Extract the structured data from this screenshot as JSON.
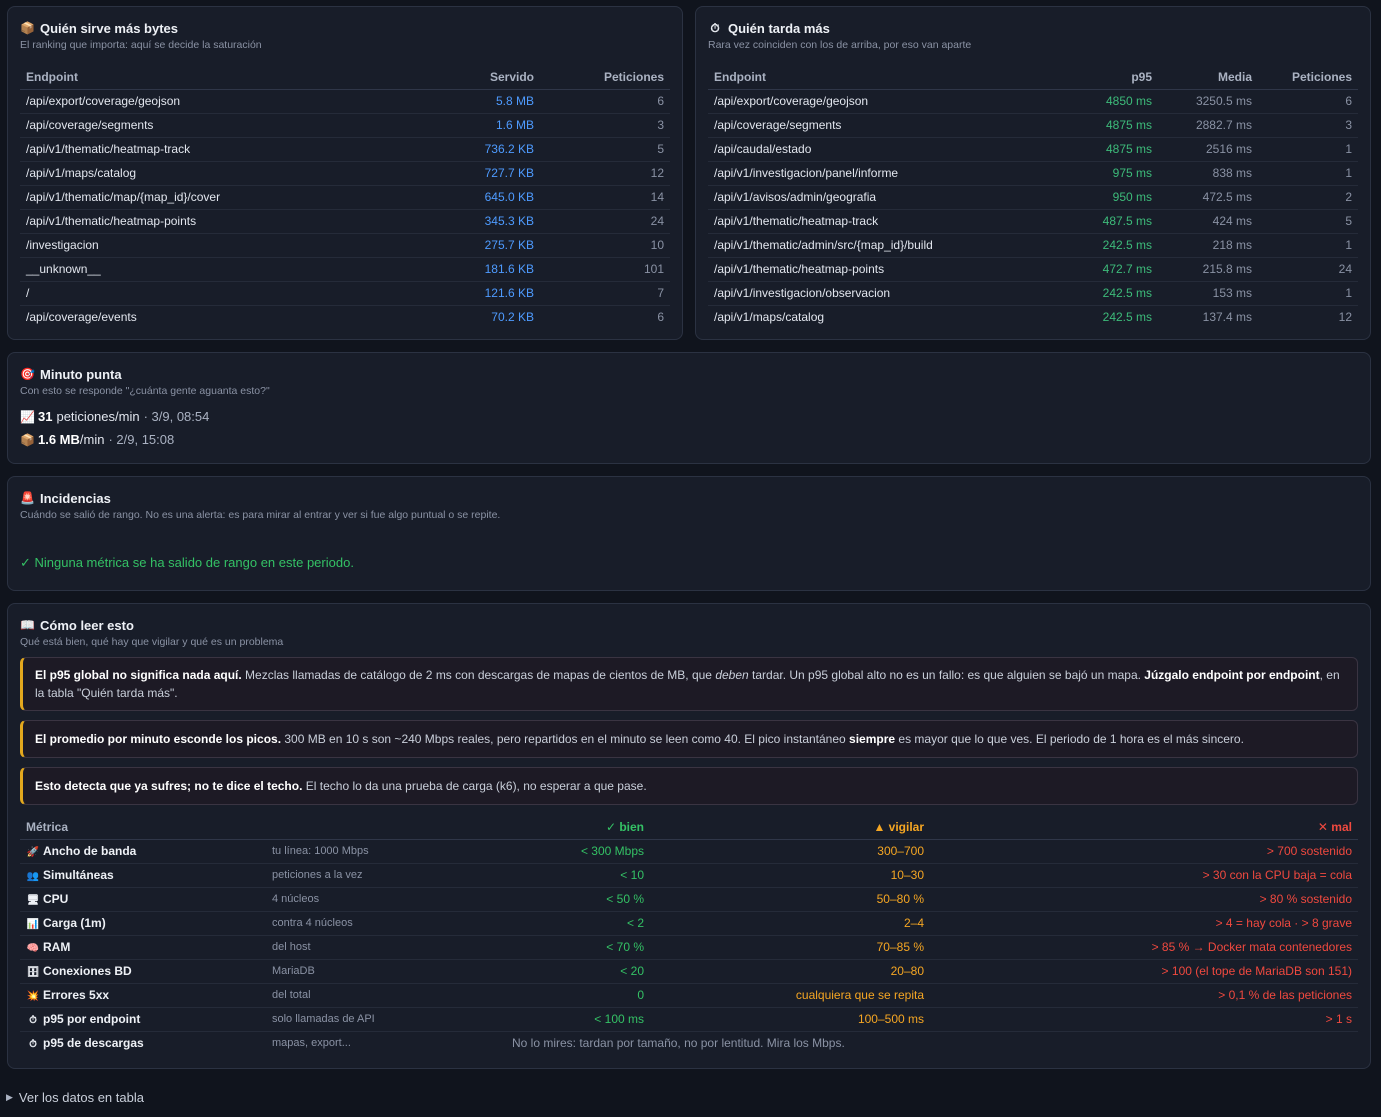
{
  "bytes_card": {
    "icon": "📦",
    "title": "Quién sirve más bytes",
    "subtitle": "El ranking que importa: aquí se decide la saturación",
    "headers": {
      "endpoint": "Endpoint",
      "servido": "Servido",
      "peticiones": "Peticiones"
    },
    "rows": [
      {
        "endpoint": "/api/export/coverage/geojson",
        "servido": "5.8 MB",
        "peticiones": "6"
      },
      {
        "endpoint": "/api/coverage/segments",
        "servido": "1.6 MB",
        "peticiones": "3"
      },
      {
        "endpoint": "/api/v1/thematic/heatmap-track",
        "servido": "736.2 KB",
        "peticiones": "5"
      },
      {
        "endpoint": "/api/v1/maps/catalog",
        "servido": "727.7 KB",
        "peticiones": "12"
      },
      {
        "endpoint": "/api/v1/thematic/map/{map_id}/cover",
        "servido": "645.0 KB",
        "peticiones": "14"
      },
      {
        "endpoint": "/api/v1/thematic/heatmap-points",
        "servido": "345.3 KB",
        "peticiones": "24"
      },
      {
        "endpoint": "/investigacion",
        "servido": "275.7 KB",
        "peticiones": "10"
      },
      {
        "endpoint": "__unknown__",
        "servido": "181.6 KB",
        "peticiones": "101"
      },
      {
        "endpoint": "/",
        "servido": "121.6 KB",
        "peticiones": "7"
      },
      {
        "endpoint": "/api/coverage/events",
        "servido": "70.2 KB",
        "peticiones": "6"
      }
    ]
  },
  "slow_card": {
    "icon": "⏱",
    "title": "Quién tarda más",
    "subtitle": "Rara vez coinciden con los de arriba, por eso van aparte",
    "headers": {
      "endpoint": "Endpoint",
      "p95": "p95",
      "media": "Media",
      "peticiones": "Peticiones"
    },
    "rows": [
      {
        "endpoint": "/api/export/coverage/geojson",
        "p95": "4850 ms",
        "media": "3250.5 ms",
        "peticiones": "6"
      },
      {
        "endpoint": "/api/coverage/segments",
        "p95": "4875 ms",
        "media": "2882.7 ms",
        "peticiones": "3"
      },
      {
        "endpoint": "/api/caudal/estado",
        "p95": "4875 ms",
        "media": "2516 ms",
        "peticiones": "1"
      },
      {
        "endpoint": "/api/v1/investigacion/panel/informe",
        "p95": "975 ms",
        "media": "838 ms",
        "peticiones": "1"
      },
      {
        "endpoint": "/api/v1/avisos/admin/geografia",
        "p95": "950 ms",
        "media": "472.5 ms",
        "peticiones": "2"
      },
      {
        "endpoint": "/api/v1/thematic/heatmap-track",
        "p95": "487.5 ms",
        "media": "424 ms",
        "peticiones": "5"
      },
      {
        "endpoint": "/api/v1/thematic/admin/src/{map_id}/build",
        "p95": "242.5 ms",
        "media": "218 ms",
        "peticiones": "1"
      },
      {
        "endpoint": "/api/v1/thematic/heatmap-points",
        "p95": "472.7 ms",
        "media": "215.8 ms",
        "peticiones": "24"
      },
      {
        "endpoint": "/api/v1/investigacion/observacion",
        "p95": "242.5 ms",
        "media": "153 ms",
        "peticiones": "1"
      },
      {
        "endpoint": "/api/v1/maps/catalog",
        "p95": "242.5 ms",
        "media": "137.4 ms",
        "peticiones": "12"
      }
    ]
  },
  "peak_card": {
    "icon": "🎯",
    "title": "Minuto punta",
    "subtitle": "Con esto se responde \"¿cuánta gente aguanta esto?\"",
    "req": {
      "icon": "📈",
      "value": "31",
      "unit": "peticiones/min",
      "when": "· 3/9, 08:54"
    },
    "bytes": {
      "icon": "📦",
      "value": "1.6 MB",
      "unit": "/min",
      "when": "· 2/9, 15:08"
    }
  },
  "incidents_card": {
    "icon": "🚨",
    "title": "Incidencias",
    "subtitle": "Cuándo se salió de rango. No es una alerta: es para mirar al entrar y ver si fue algo puntual o se repite.",
    "message": "✓ Ninguna métrica se ha salido de rango en este periodo."
  },
  "guide_card": {
    "icon": "📖",
    "title": "Cómo leer esto",
    "subtitle": "Qué está bien, qué hay que vigilar y qué es un problema",
    "callouts": [
      {
        "b1": "El p95 global no significa nada aquí.",
        "t1": " Mezclas llamadas de catálogo de 2 ms con descargas de mapas de cientos de MB, que ",
        "em": "deben",
        "t2": " tardar. Un p95 global alto no es un fallo: es que alguien se bajó un mapa. ",
        "b2": "Júzgalo endpoint por endpoint",
        "t3": ", en la tabla \"Quién tarda más\"."
      },
      {
        "b1": "El promedio por minuto esconde los picos.",
        "t1": " 300 MB en 10 s son ~240 Mbps reales, pero repartidos en el minuto se leen como 40. El pico instantáneo ",
        "b2": "siempre",
        "t2": " es mayor que lo que ves. El periodo de 1 hora es el más sincero."
      },
      {
        "b1": "Esto detecta que ya sufres; no te dice el techo.",
        "t1": " El techo lo da una prueba de carga (k6), no esperar a que pase."
      }
    ],
    "headers": {
      "metrica": "Métrica",
      "bien": "✓ bien",
      "vigilar": "▲ vigilar",
      "mal": "✕ mal"
    },
    "metrics": [
      {
        "icon": "🚀",
        "name": "Ancho de banda",
        "ctx": "tu línea: 1000 Mbps",
        "bien": "< 300 Mbps",
        "vigilar": "300–700",
        "mal": "> 700 sostenido"
      },
      {
        "icon": "👥",
        "name": "Simultáneas",
        "ctx": "peticiones a la vez",
        "bien": "< 10",
        "vigilar": "10–30",
        "mal": "> 30 con la CPU baja = cola"
      },
      {
        "icon": "🖥",
        "name": "CPU",
        "ctx": "4 núcleos",
        "bien": "< 50 %",
        "vigilar": "50–80 %",
        "mal": "> 80 % sostenido"
      },
      {
        "icon": "📊",
        "name": "Carga (1m)",
        "ctx": "contra 4 núcleos",
        "bien": "< 2",
        "vigilar": "2–4",
        "mal": "> 4 = hay cola · > 8 grave"
      },
      {
        "icon": "🧠",
        "name": "RAM",
        "ctx": "del host",
        "bien": "< 70 %",
        "vigilar": "70–85 %",
        "mal": "> 85 % → Docker mata contenedores"
      },
      {
        "icon": "🗄",
        "name": "Conexiones BD",
        "ctx": "MariaDB",
        "bien": "< 20",
        "vigilar": "20–80",
        "mal": "> 100 (el tope de MariaDB son 151)"
      },
      {
        "icon": "💥",
        "name": "Errores 5xx",
        "ctx": "del total",
        "bien": "0",
        "vigilar": "cualquiera que se repita",
        "mal": "> 0,1 % de las peticiones"
      },
      {
        "icon": "⏱",
        "name": "p95 por endpoint",
        "ctx": "solo llamadas de API",
        "bien": "< 100 ms",
        "vigilar": "100–500 ms",
        "mal": "> 1 s"
      }
    ],
    "last_metric": {
      "icon": "⏱",
      "name": "p95 de descargas",
      "ctx": "mapas, export...",
      "note": "No lo mires: tardan por tamaño, no por lentitud. Mira los Mbps."
    }
  },
  "footer": {
    "toggle": "▶",
    "label": "Ver los datos en tabla"
  }
}
